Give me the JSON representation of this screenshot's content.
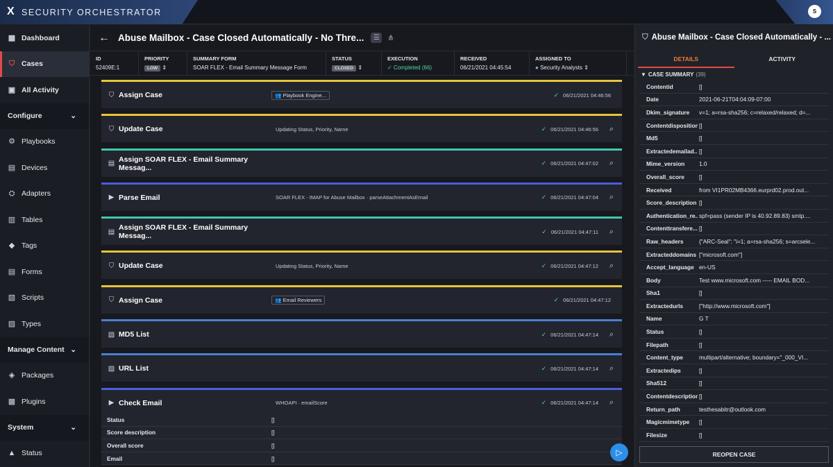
{
  "app": {
    "logo": "X",
    "name": "SECURITY ORCHESTRATOR",
    "avatar": "S"
  },
  "sidebar": {
    "items": [
      {
        "label": "Dashboard",
        "icon": "dashboard-icon",
        "glyph": "▦"
      },
      {
        "label": "Cases",
        "icon": "shield-icon",
        "glyph": "⛉"
      },
      {
        "label": "All Activity",
        "icon": "activity-icon",
        "glyph": "▣"
      },
      {
        "label": "Configure",
        "section": true
      },
      {
        "label": "Playbooks",
        "icon": "playbooks-icon",
        "glyph": "⚙"
      },
      {
        "label": "Devices",
        "icon": "devices-icon",
        "glyph": "▤"
      },
      {
        "label": "Adapters",
        "icon": "adapters-icon",
        "glyph": "⛭"
      },
      {
        "label": "Tables",
        "icon": "tables-icon",
        "glyph": "▥"
      },
      {
        "label": "Tags",
        "icon": "tag-icon",
        "glyph": "◆"
      },
      {
        "label": "Forms",
        "icon": "forms-icon",
        "glyph": "▤"
      },
      {
        "label": "Scripts",
        "icon": "scripts-icon",
        "glyph": "▧"
      },
      {
        "label": "Types",
        "icon": "types-icon",
        "glyph": "▨"
      },
      {
        "label": "Manage Content",
        "section": true
      },
      {
        "label": "Packages",
        "icon": "packages-icon",
        "glyph": "◈"
      },
      {
        "label": "Plugins",
        "icon": "plugins-icon",
        "glyph": "▩"
      },
      {
        "label": "System",
        "section": true
      },
      {
        "label": "Status",
        "icon": "status-icon",
        "glyph": "▲"
      }
    ]
  },
  "case": {
    "title": "Abuse Mailbox - Case Closed Automatically - No Thre...",
    "meta": [
      {
        "label": "ID",
        "value": "52409E:1"
      },
      {
        "label": "PRIORITY",
        "value": "LOW",
        "badge": true
      },
      {
        "label": "SUMMARY FORM",
        "value": "SOAR FLEX - Email Summary Message Form"
      },
      {
        "label": "STATUS",
        "value": "CLOSED",
        "badge": true
      },
      {
        "label": "EXECUTION",
        "value": "Completed (66)",
        "green": true
      },
      {
        "label": "RECEIVED",
        "value": "06/21/2021 04:45:54"
      },
      {
        "label": "ASSIGNED TO",
        "value": "Security Analysts"
      }
    ]
  },
  "steps": [
    {
      "name": "Assign Case",
      "desc": "Playbook Engine...",
      "chip": true,
      "time": "06/21/2021 04:46:56",
      "color": "#e8c53a",
      "glyph": "⛉",
      "mag": false
    },
    {
      "name": "Update Case",
      "desc": "Updating Status, Priority, Name",
      "time": "06/21/2021 04:46:56",
      "color": "#e8c53a",
      "glyph": "⛉",
      "mag": true
    },
    {
      "name": "Assign SOAR FLEX - Email Summary Messag...",
      "desc": "",
      "time": "06/21/2021 04:47:02",
      "color": "#3ec9b0",
      "glyph": "▤",
      "mag": true
    },
    {
      "name": "Parse Email",
      "desc": "SOAR FLEX - IMAP for Abuse Mailbox  ·  parseAttachmentAsEmail",
      "time": "06/21/2021 04:47:04",
      "color": "#4a5fe0",
      "glyph": "▶",
      "mag": true
    },
    {
      "name": "Assign SOAR FLEX - Email Summary Messag...",
      "desc": "",
      "time": "06/21/2021 04:47:11",
      "color": "#3ec9b0",
      "glyph": "▤",
      "mag": true
    },
    {
      "name": "Update Case",
      "desc": "Updating Status, Priority, Name",
      "time": "06/21/2021 04:47:12",
      "color": "#e8c53a",
      "glyph": "⛉",
      "mag": true
    },
    {
      "name": "Assign Case",
      "desc": "Email Reviewers",
      "chip": true,
      "time": "06/21/2021 04:47:12",
      "color": "#e8c53a",
      "glyph": "⛉",
      "mag": false
    },
    {
      "name": "MD5 List",
      "desc": "",
      "time": "06/21/2021 04:47:14",
      "color": "#4a7fd0",
      "glyph": "▧",
      "mag": true
    },
    {
      "name": "URL List",
      "desc": "",
      "time": "06/21/2021 04:47:14",
      "color": "#4a7fd0",
      "glyph": "▧",
      "mag": true
    },
    {
      "name": "Check Email",
      "desc": "WHOAPI  ·  emailScore",
      "time": "06/21/2021 04:47:14",
      "color": "#4a5fe0",
      "glyph": "▶",
      "mag": true
    }
  ],
  "check_rows": [
    {
      "k": "Status",
      "v": "[]"
    },
    {
      "k": "Score description",
      "v": "[]"
    },
    {
      "k": "Overall score",
      "v": "[]"
    },
    {
      "k": "Email",
      "v": "[]"
    }
  ],
  "panel": {
    "title": "Abuse Mailbox - Case Closed Automatically - ...",
    "tabs": [
      "DETAILS",
      "ACTIVITY"
    ],
    "summary_label": "CASE SUMMARY",
    "summary_count": "(39)",
    "fields": [
      {
        "k": "Contentid",
        "v": "[]"
      },
      {
        "k": "Date",
        "v": "2021-06-21T04:04:09-07:00"
      },
      {
        "k": "Dkim_signature",
        "v": "v=1; a=rsa-sha256; c=relaxed/relaxed; d=..."
      },
      {
        "k": "Contentdisposition",
        "v": "[]"
      },
      {
        "k": "Md5",
        "v": "[]"
      },
      {
        "k": "Extractedemailad...",
        "v": "[]"
      },
      {
        "k": "Mime_version",
        "v": "1.0"
      },
      {
        "k": "Overall_score",
        "v": "[]"
      },
      {
        "k": "Received",
        "v": "from VI1PR02MB4366.eurprd02.prod.out..."
      },
      {
        "k": "Score_description",
        "v": "[]"
      },
      {
        "k": "Authentication_re...",
        "v": "spf=pass (sender IP is 40.92.89.83) smtp...."
      },
      {
        "k": "Contenttransfere...",
        "v": "[]"
      },
      {
        "k": "Raw_headers",
        "v": "{\"ARC-Seal\": \"i=1; a=rsa-sha256; s=arcsele..."
      },
      {
        "k": "Extracteddomains",
        "v": "[\"microsoft.com\"]"
      },
      {
        "k": "Accept_language",
        "v": "en-US"
      },
      {
        "k": "Body",
        "v": "Test  www.microsoft.com ----- EMAIL BOD..."
      },
      {
        "k": "Sha1",
        "v": "[]"
      },
      {
        "k": "Extractedurls",
        "v": "[\"http://www.microsoft.com\"]"
      },
      {
        "k": "Name",
        "v": "G T"
      },
      {
        "k": "Status",
        "v": "[]"
      },
      {
        "k": "Filepath",
        "v": "[]"
      },
      {
        "k": "Content_type",
        "v": "multipart/alternative; boundary=\"_000_VI..."
      },
      {
        "k": "Extractedips",
        "v": "[]"
      },
      {
        "k": "Sha512",
        "v": "[]"
      },
      {
        "k": "Contentdescription",
        "v": "[]"
      },
      {
        "k": "Return_path",
        "v": "testhesabitr@outlook.com"
      },
      {
        "k": "Magicmimetype",
        "v": "[]"
      },
      {
        "k": "Filesize",
        "v": "[]"
      }
    ],
    "reopen": "REOPEN CASE"
  }
}
